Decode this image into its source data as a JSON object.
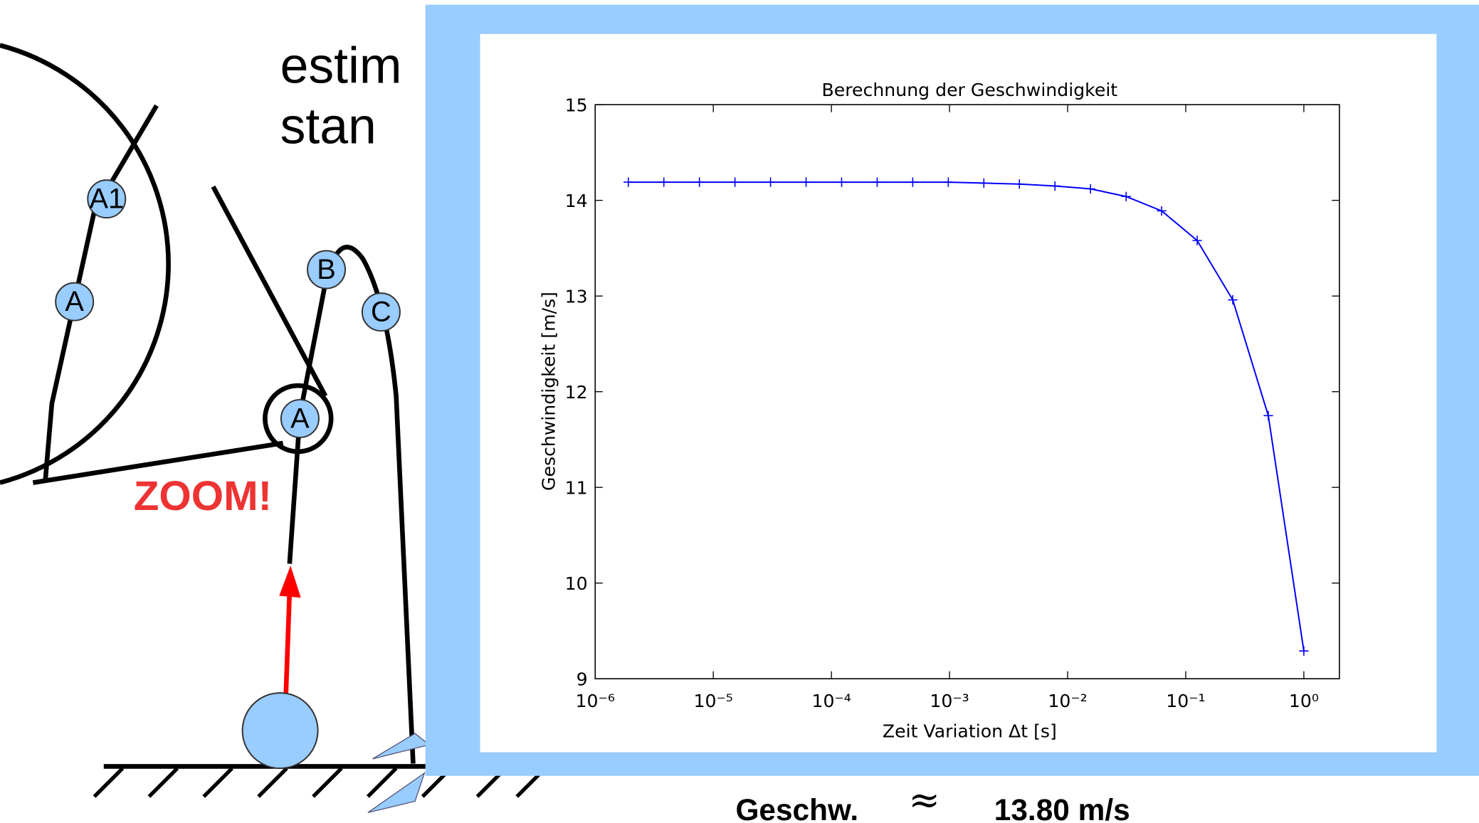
{
  "slide": {
    "title_fragments": [
      "estim",
      "stan"
    ],
    "labels": [
      "A1",
      "A",
      "B",
      "C",
      "A"
    ],
    "zoom": "ZOOM!",
    "result": {
      "label": "Geschw.",
      "approx": "≈",
      "value": "13.80 m/s"
    }
  },
  "chart_data": {
    "type": "line",
    "title": "Berechnung der Geschwindigkeit",
    "x_label": "Zeit Variation Δt [s]",
    "y_label": "Geschwindigkeit [m/s]",
    "x": [
      1.9073486328125e-06,
      3.814697265625e-06,
      7.62939453125e-06,
      1.52587890625e-05,
      3.0517578125e-05,
      6.103515625e-05,
      0.0001220703125,
      0.000244140625,
      0.00048828125,
      0.0009765625,
      0.001953125,
      0.00390625,
      0.0078125,
      0.015625,
      0.03125,
      0.0625,
      0.125,
      0.25,
      0.5,
      1
    ],
    "values": [
      14.19,
      14.19,
      14.19,
      14.19,
      14.19,
      14.19,
      14.19,
      14.19,
      14.19,
      14.19,
      14.18,
      14.17,
      14.15,
      14.12,
      14.04,
      13.89,
      13.58,
      12.96,
      11.75,
      9.29
    ],
    "color": "#0000ff",
    "xscale": "log",
    "xlim": [
      1e-06,
      2
    ],
    "ylim": [
      9,
      15
    ],
    "xticks": [
      {
        "value": 1e-06,
        "label": "10⁻⁶"
      },
      {
        "value": 1e-05,
        "label": "10⁻⁵"
      },
      {
        "value": 0.0001,
        "label": "10⁻⁴"
      },
      {
        "value": 0.001,
        "label": "10⁻³"
      },
      {
        "value": 0.01,
        "label": "10⁻²"
      },
      {
        "value": 0.1,
        "label": "10⁻¹"
      },
      {
        "value": 1,
        "label": "10⁰"
      }
    ],
    "yticks": [
      9,
      10,
      11,
      12,
      13,
      14,
      15
    ]
  }
}
